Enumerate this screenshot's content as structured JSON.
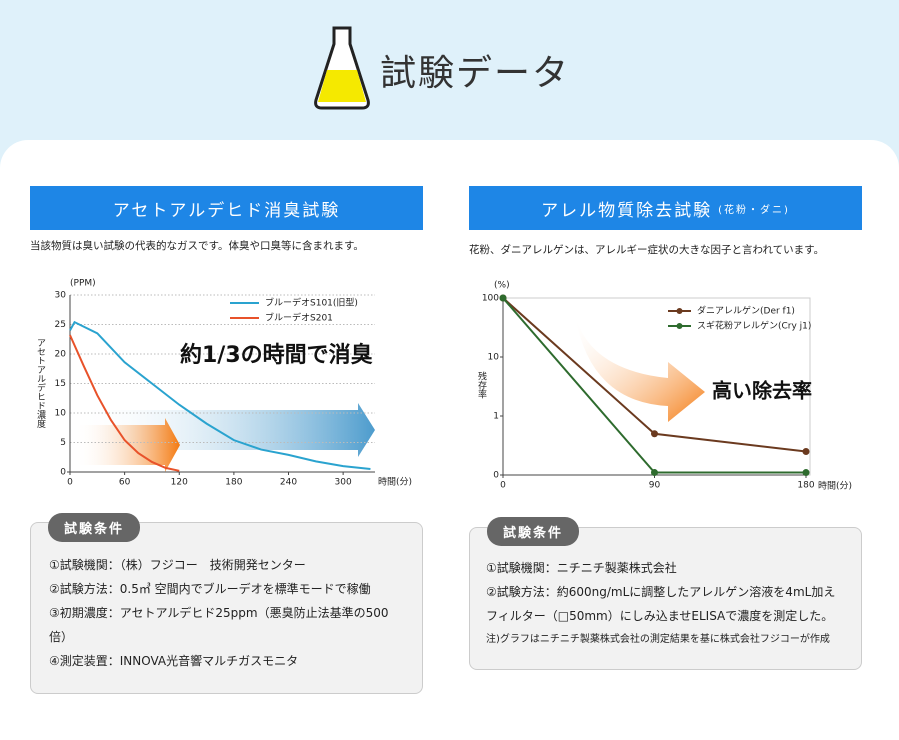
{
  "header": {
    "title": "試験データ"
  },
  "panels": [
    {
      "heading": "アセトアルデヒド消臭試験",
      "description": "当該物質は臭い試験の代表的なガスです。体臭や口臭等に含まれます。",
      "conditions_label": "試験条件",
      "conditions": [
        "①試験機関：（株）フジコー　技術開発センター",
        "②試験方法：0.5㎥ 空間内でブルーデオを標準モードで稼働",
        "③初期濃度：アセトアルデヒド25ppm（悪臭防止法基準の500倍）",
        "④測定装置：INNOVA光音響マルチガスモニタ"
      ]
    },
    {
      "heading": "アレル物質除去試験",
      "heading_note": "(花粉・ダニ)",
      "description": "花粉、ダニアレルゲンは、アレルギー症状の大きな因子と言われています。",
      "conditions_label": "試験条件",
      "conditions": [
        "①試験機関：ニチニチ製薬株式会社",
        "②試験方法：約600ng/mLに調整したアレルゲン溶液を4mL加えフィルター（□50mm）にしみ込ませELISAで濃度を測定した。"
      ],
      "note": "注)グラフはニチニチ製薬株式会社の測定結果を基に株式会社フジコーが作成"
    }
  ],
  "chart_data": [
    {
      "type": "line",
      "y_unit": "(PPM)",
      "y_label": "アセトアルデヒド濃度",
      "x_label": "時間(分)",
      "annotation": "約1/3の時間で消臭",
      "xlim": [
        0,
        335
      ],
      "xticks": [
        0,
        60,
        120,
        180,
        240,
        300
      ],
      "ylim": [
        0,
        30
      ],
      "yticks": [
        0,
        5,
        10,
        15,
        20,
        25,
        30
      ],
      "grid": true,
      "markers": false,
      "log_y": false,
      "series": [
        {
          "name": "ブルーデオS101(旧型)",
          "color": "#2aa3cf",
          "x": [
            0,
            5,
            30,
            60,
            90,
            120,
            150,
            180,
            210,
            240,
            270,
            300,
            330
          ],
          "values": [
            24,
            25.4,
            23.5,
            18.6,
            15,
            11.4,
            8.2,
            5.4,
            3.8,
            2.9,
            1.8,
            1,
            0.5
          ]
        },
        {
          "name": "ブルーデオS201",
          "color": "#e8522a",
          "x": [
            0,
            15,
            30,
            45,
            60,
            75,
            90,
            105,
            120
          ],
          "values": [
            23.2,
            18,
            13,
            8.8,
            5.4,
            3.2,
            1.7,
            0.7,
            0.2
          ]
        }
      ]
    },
    {
      "type": "line",
      "y_unit": "(%)",
      "y_label": "残存率",
      "x_label": "時間(分)",
      "annotation": "高い除去率",
      "xlim": [
        0,
        180
      ],
      "xticks": [
        0,
        90,
        180
      ],
      "ylim": [
        0.1,
        100
      ],
      "yticks": [
        100,
        10,
        1,
        {
          "value": 0.1,
          "label": "0"
        }
      ],
      "grid": false,
      "markers": true,
      "log_y": true,
      "series": [
        {
          "name": "ダニアレルゲン(Der f1)",
          "color": "#6b3a1f",
          "x": [
            0,
            90,
            180
          ],
          "values": [
            100,
            0.5,
            0.25
          ]
        },
        {
          "name": "スギ花粉アレルゲン(Cry j1)",
          "color": "#2e6b2e",
          "x": [
            0,
            90,
            180
          ],
          "values": [
            100,
            0.11,
            0.11
          ]
        }
      ]
    }
  ]
}
